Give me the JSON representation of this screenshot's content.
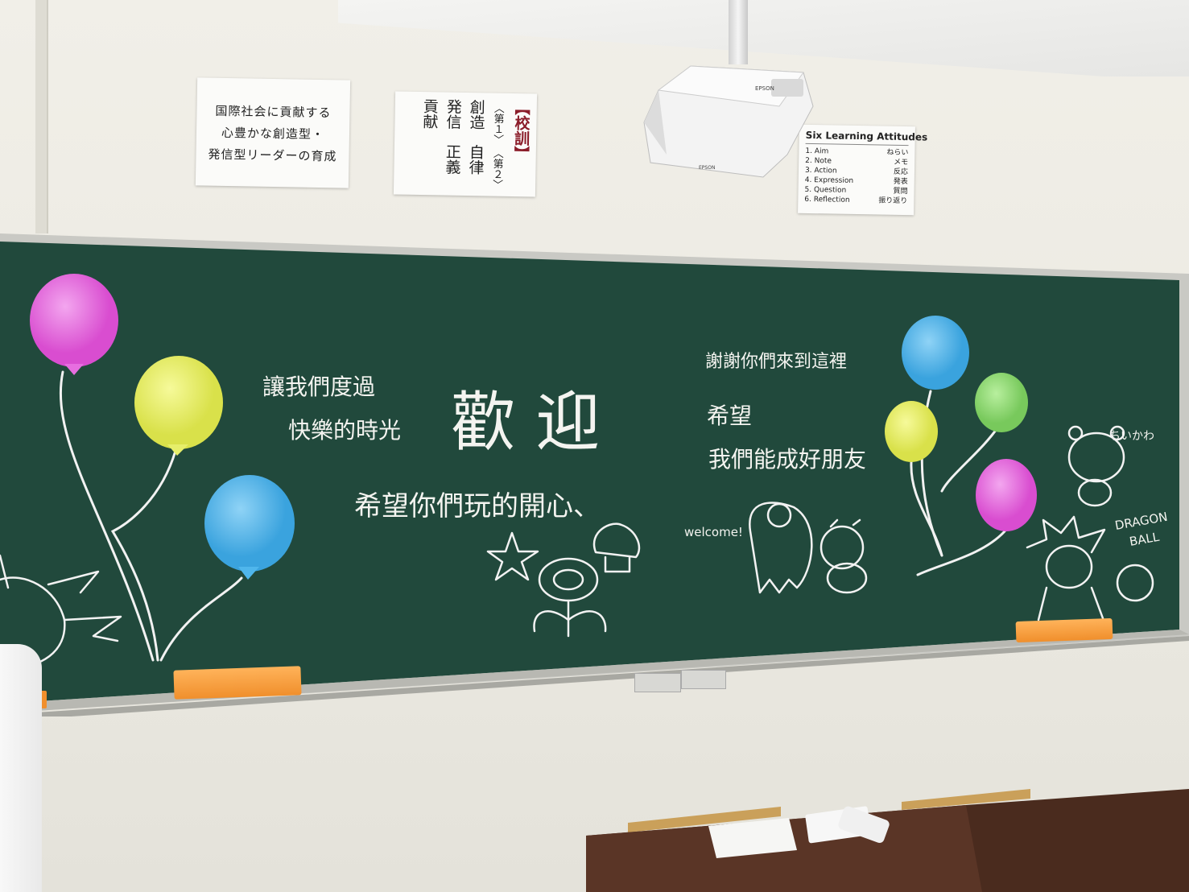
{
  "posters": {
    "school_goal": {
      "lines": [
        "国際社会に貢献する",
        "心豊かな創造型・",
        "発信型リーダーの育成"
      ]
    },
    "school_motto": {
      "columns": [
        "【校訓】",
        "〈第１〉",
        "創造",
        "発信",
        "貢献",
        "〈第２〉",
        "自律",
        "正義"
      ]
    },
    "attitudes": {
      "title": "Six Learning Attitudes",
      "items": [
        {
          "en": "1. Aim",
          "jp": "ねらい"
        },
        {
          "en": "2. Note",
          "jp": "メモ"
        },
        {
          "en": "3. Action",
          "jp": "反応"
        },
        {
          "en": "4. Expression",
          "jp": "発表"
        },
        {
          "en": "5. Question",
          "jp": "質問"
        },
        {
          "en": "6. Reflection",
          "jp": "振り返り"
        }
      ]
    }
  },
  "projector": {
    "brand": "EPSON"
  },
  "chalkboard": {
    "main_word": "歡 迎",
    "line_left_1": "讓我們度過",
    "line_left_2": "快樂的時光",
    "line_bottom": "希望你們玩的開心、",
    "line_right_1": "謝謝你們來到這裡",
    "line_right_2": "希望",
    "line_right_3": "我們能成好朋友",
    "welcome": "welcome!",
    "chiikawa": "ちいかわ",
    "dragon_ball_1": "DRAGON",
    "dragon_ball_2": "BALL",
    "balloon_colors": {
      "pink": "#e76ee0",
      "yellow": "#e6ee6a",
      "blue": "#4fb6ec",
      "green": "#8edc74",
      "board": "#21493c"
    }
  }
}
